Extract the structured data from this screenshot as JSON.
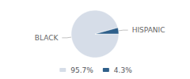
{
  "chart_data": {
    "type": "pie",
    "categories": [
      "BLACK",
      "HISPANIC"
    ],
    "values": [
      95.7,
      4.3
    ],
    "value_labels": [
      "95.7%",
      "4.3%"
    ],
    "colors": [
      "#d6dde8",
      "#2e5f8a"
    ],
    "legend": "bottom"
  }
}
